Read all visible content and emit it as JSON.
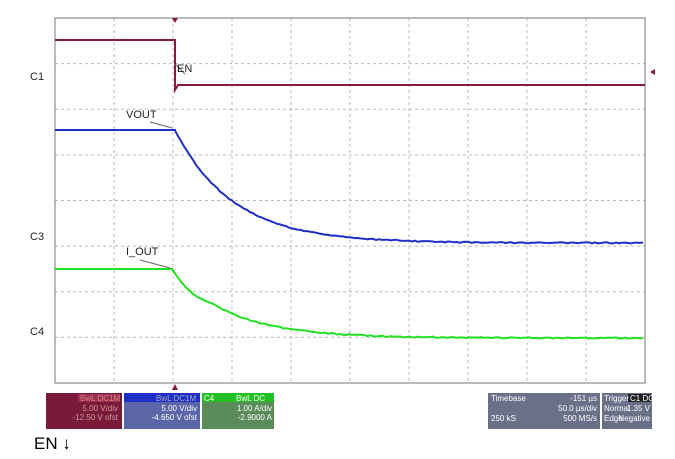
{
  "trace_labels": {
    "c1": "C1",
    "en": "EN",
    "vout": "VOUT",
    "c3": "C3",
    "i_out": "I_OUT",
    "c4": "C4"
  },
  "panels": {
    "c1": {
      "header": "BwL DC1M",
      "lines": [
        "5.00 V/div",
        "-12.50 V ofst"
      ]
    },
    "c3": {
      "header": "BwL DC1M",
      "lines": [
        "5.00 V/div",
        "-4.650 V ofst"
      ]
    },
    "c4": {
      "name": "C4",
      "header": "BwL DC",
      "lines": [
        "1.00 A/div",
        "-2.9000 A"
      ]
    },
    "timebase": {
      "label": "Timebase",
      "delay": "-151 µs",
      "div": "50.0 µs/div",
      "samples": "250 kS",
      "rate": "500 MS/s"
    },
    "trigger": {
      "label": "Trigger",
      "source": "C1 DC",
      "mode": "Normal",
      "level": "1.35 V",
      "kind": "Edge",
      "slope": "Negative"
    }
  },
  "caption": "EN ↓"
}
